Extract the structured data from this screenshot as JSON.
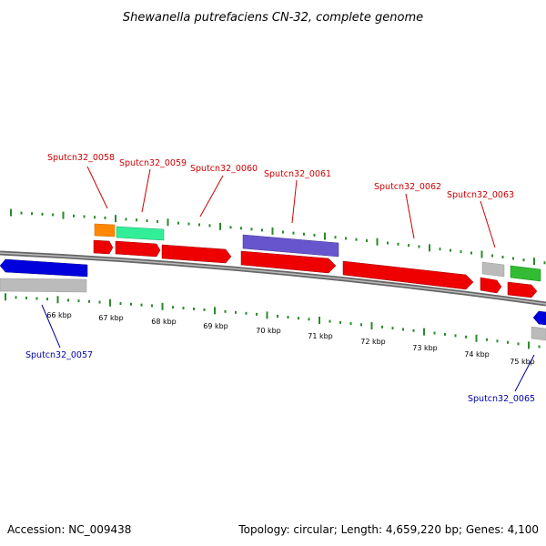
{
  "title": "Shewanella putrefaciens CN-32, complete genome",
  "footer": {
    "accession": "Accession: NC_009438",
    "summary": "Topology: circular; Length: 4,659,220 bp; Genes: 4,100"
  },
  "colors": {
    "forward_label": "#cc0000",
    "reverse_label": "#0000aa",
    "tick": "#2a8a2a",
    "backbone": "#888888",
    "cds": "#ee0000",
    "cds_reverse": "#0000dd",
    "gene_grey": "#bbbbbb"
  },
  "scale": {
    "unit": "kbp",
    "labels": [
      "66 kbp",
      "67 kbp",
      "68 kbp",
      "69 kbp",
      "70 kbp",
      "71 kbp",
      "72 kbp",
      "73 kbp",
      "74 kbp",
      "75 kbp"
    ]
  },
  "gene_labels": [
    {
      "text": "Sputcn32_0057",
      "strand": "reverse"
    },
    {
      "text": "Sputcn32_0058",
      "strand": "forward"
    },
    {
      "text": "Sputcn32_0059",
      "strand": "forward"
    },
    {
      "text": "Sputcn32_0060",
      "strand": "forward"
    },
    {
      "text": "Sputcn32_0061",
      "strand": "forward"
    },
    {
      "text": "Sputcn32_0062",
      "strand": "forward"
    },
    {
      "text": "Sputcn32_0063",
      "strand": "forward"
    },
    {
      "text": "Sputcn32_0065",
      "strand": "reverse"
    }
  ],
  "features": [
    {
      "type": "gene",
      "strand": "reverse",
      "color": "#bbbbbb"
    },
    {
      "type": "cds",
      "strand": "reverse",
      "color": "#0000dd"
    },
    {
      "type": "gene",
      "strand": "forward",
      "color": "#ff8800"
    },
    {
      "type": "cds",
      "strand": "forward",
      "color": "#ee0000"
    },
    {
      "type": "gene",
      "strand": "forward",
      "color": "#33ee99"
    },
    {
      "type": "cds",
      "strand": "forward",
      "color": "#ee0000"
    },
    {
      "type": "cds",
      "strand": "forward",
      "color": "#ee0000"
    },
    {
      "type": "gene",
      "strand": "forward",
      "color": "#6655cc"
    },
    {
      "type": "cds",
      "strand": "forward",
      "color": "#ee0000"
    },
    {
      "type": "cds",
      "strand": "forward",
      "color": "#ee0000"
    },
    {
      "type": "gene",
      "strand": "forward",
      "color": "#bbbbbb"
    },
    {
      "type": "cds",
      "strand": "forward",
      "color": "#ee0000"
    },
    {
      "type": "gene",
      "strand": "forward",
      "color": "#33bb33"
    },
    {
      "type": "cds",
      "strand": "forward",
      "color": "#ee0000"
    },
    {
      "type": "cds",
      "strand": "reverse",
      "color": "#0000dd"
    },
    {
      "type": "gene",
      "strand": "reverse",
      "color": "#bbbbbb"
    }
  ]
}
